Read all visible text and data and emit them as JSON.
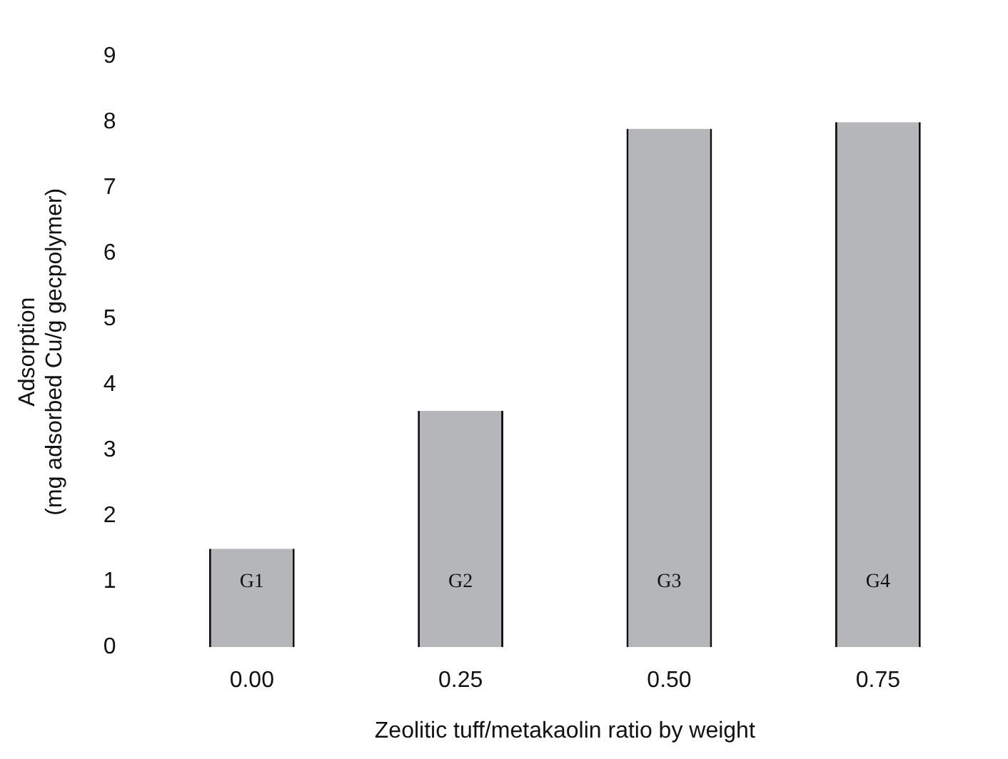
{
  "chart_data": {
    "type": "bar",
    "xlabel": "Zeolitic tuff/metakaolin ratio by weight",
    "ylabel": "Adsorption\n(mg adsorbed Cu/g gecpolymer)",
    "categories": [
      "0.00",
      "0.25",
      "0.50",
      "0.75"
    ],
    "values": [
      1.5,
      3.6,
      7.9,
      8.0
    ],
    "color": "#b5b6ba",
    "ylim": [
      0,
      9
    ],
    "yticks": [
      0,
      1,
      2,
      3,
      4,
      5,
      6,
      7,
      8,
      9
    ],
    "grid": false,
    "annotations": [
      "G1",
      "G2",
      "G3",
      "G4"
    ]
  }
}
